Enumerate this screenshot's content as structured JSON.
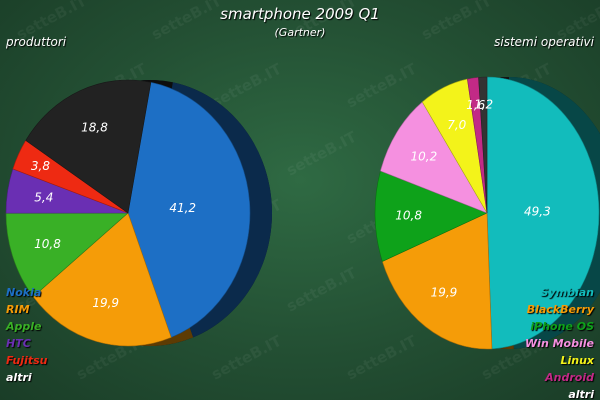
{
  "page": {
    "title": "smartphone 2009 Q1",
    "subtitle": "(Gartner)",
    "watermark": "setteB.IT"
  },
  "chart_data": [
    {
      "type": "pie",
      "title": "produttori",
      "legend_position": "bottom-left",
      "slices": [
        {
          "label": "Nokia",
          "value": 41.2,
          "value_label": "41,2",
          "color": "#1d6fc5"
        },
        {
          "label": "RIM",
          "value": 19.9,
          "value_label": "19,9",
          "color": "#f59c08"
        },
        {
          "label": "Apple",
          "value": 10.8,
          "value_label": "10,8",
          "color": "#39b026"
        },
        {
          "label": "HTC",
          "value": 5.4,
          "value_label": "5,4",
          "color": "#6a2fb3"
        },
        {
          "label": "Fujitsu",
          "value": 3.8,
          "value_label": "3,8",
          "color": "#ee2a12"
        },
        {
          "label": "altri",
          "value": 18.8,
          "value_label": "18,8",
          "color": "#222222"
        }
      ]
    },
    {
      "type": "pie",
      "title": "sistemi operativi",
      "legend_position": "bottom-right",
      "slices": [
        {
          "label": "Symbian",
          "value": 49.3,
          "value_label": "49,3",
          "color": "#12bcbc"
        },
        {
          "label": "BlackBerry",
          "value": 19.9,
          "value_label": "19,9",
          "color": "#f59c08"
        },
        {
          "label": "iPhone OS",
          "value": 10.8,
          "value_label": "10,8",
          "color": "#0ea21a"
        },
        {
          "label": "Win Mobile",
          "value": 10.2,
          "value_label": "10,2",
          "color": "#f590e0"
        },
        {
          "label": "Linux",
          "value": 7.0,
          "value_label": "7,0",
          "color": "#f3f31a"
        },
        {
          "label": "Android",
          "value": 1.6,
          "value_label": "1,6",
          "color": "#c22a86"
        },
        {
          "label": "altri",
          "value": 1.2,
          "value_label": "1,2",
          "color": "#333333"
        }
      ]
    }
  ]
}
